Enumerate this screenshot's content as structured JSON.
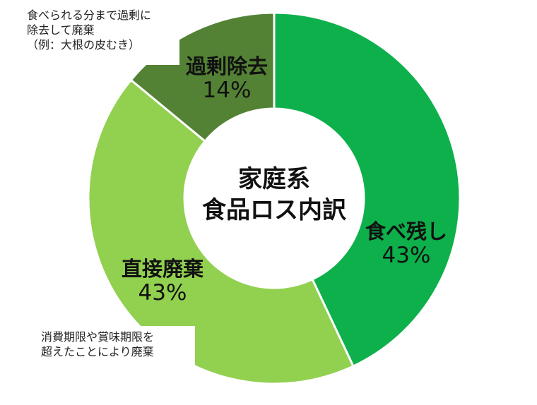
{
  "chart_data": {
    "type": "pie",
    "variant": "donut",
    "title": "家庭系食品ロス内訳",
    "categories": [
      "食べ残し",
      "直接廃棄",
      "過剰除去"
    ],
    "values": [
      43,
      43,
      14
    ],
    "unit": "%",
    "colors": [
      "#0db04b",
      "#92d050",
      "#548235"
    ],
    "annotations": [
      {
        "target": "過剰除去",
        "text": "食べられる分まで過剰に除去して廃棄（例：大根の皮むき）"
      },
      {
        "target": "直接廃棄",
        "text": "消費期限や賞味期限を超えたことにより廃棄"
      }
    ],
    "legend": "none"
  },
  "center": {
    "line1": "家庭系",
    "line2": "食品ロス内訳"
  },
  "slices": [
    {
      "name": "食べ残し",
      "pct": "43%"
    },
    {
      "name": "直接廃棄",
      "pct": "43%"
    },
    {
      "name": "過剰除去",
      "pct": "14%"
    }
  ],
  "notes": {
    "excess": {
      "line1": "食べられる分まで過剰に",
      "line2": "除去して廃棄",
      "line3": "（例：大根の皮むき）"
    },
    "direct": {
      "line1": "消費期限や賞味期限を",
      "line2": "超えたことにより廃棄"
    }
  }
}
